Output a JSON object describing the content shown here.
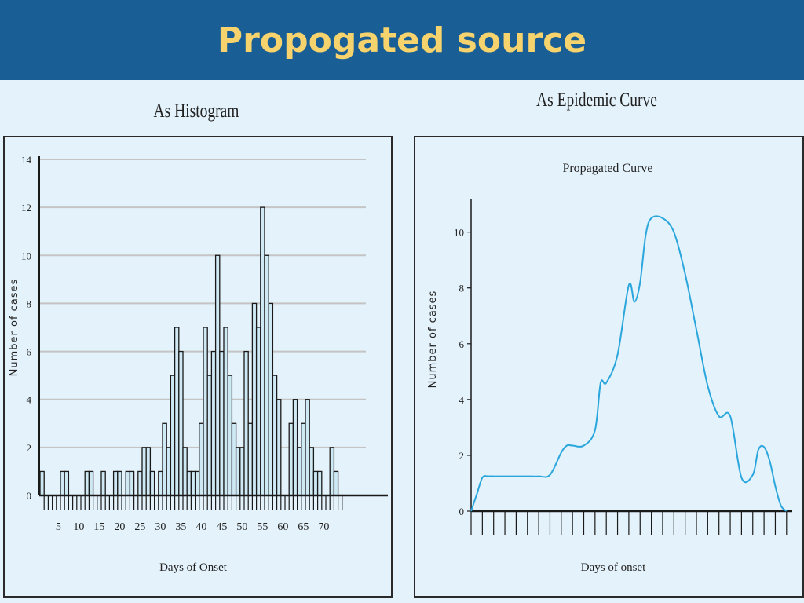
{
  "slide": {
    "title": "Propogated source"
  },
  "colors": {
    "header_bg": "#1a5e96",
    "title_color": "#f6d36c",
    "bar_fill": "#cfe9f4",
    "curve_color": "#2aa6dc"
  },
  "chart_data": [
    {
      "type": "bar",
      "panel_title": "As Histogram",
      "title": "",
      "xlabel": "Days of Onset",
      "ylabel": "Number of cases",
      "ylim": [
        0,
        14
      ],
      "yticks": [
        0,
        2,
        4,
        6,
        8,
        10,
        12,
        14
      ],
      "xticks": [
        5,
        10,
        15,
        20,
        25,
        30,
        35,
        40,
        45,
        50,
        55,
        60,
        65,
        70
      ],
      "x": [
        1,
        2,
        3,
        4,
        5,
        6,
        7,
        8,
        9,
        10,
        11,
        12,
        13,
        14,
        15,
        16,
        17,
        18,
        19,
        20,
        21,
        22,
        23,
        24,
        25,
        26,
        27,
        28,
        29,
        30,
        31,
        32,
        33,
        34,
        35,
        36,
        37,
        38,
        39,
        40,
        41,
        42,
        43,
        44,
        45,
        46,
        47,
        48,
        49,
        50,
        51,
        52,
        53,
        54,
        55,
        56,
        57,
        58,
        59,
        60,
        61,
        62,
        63,
        64,
        65,
        66,
        67,
        68,
        69,
        70,
        71,
        72,
        73,
        74
      ],
      "values": [
        1,
        0,
        0,
        0,
        0,
        1,
        1,
        0,
        0,
        0,
        0,
        1,
        1,
        0,
        0,
        1,
        0,
        0,
        1,
        1,
        0,
        1,
        1,
        0,
        1,
        2,
        2,
        1,
        0,
        1,
        3,
        2,
        5,
        7,
        6,
        2,
        1,
        1,
        1,
        3,
        7,
        5,
        6,
        10,
        6,
        7,
        5,
        3,
        2,
        2,
        6,
        3,
        8,
        7,
        12,
        10,
        8,
        5,
        4,
        0,
        0,
        3,
        4,
        2,
        3,
        4,
        2,
        1,
        1,
        0,
        0,
        2,
        1,
        0
      ],
      "grid": true
    },
    {
      "type": "line",
      "panel_title": "As Epidemic Curve",
      "title": "Propagated Curve",
      "xlabel": "Days of onset",
      "ylabel": "Number of cases",
      "ylim": [
        0,
        11.2
      ],
      "yticks": [
        0,
        2,
        4,
        6,
        8,
        10
      ],
      "x": [
        0,
        0.5,
        1,
        1.5,
        2,
        3,
        4,
        5,
        6,
        7,
        8,
        8.5,
        9,
        10,
        11,
        11.5,
        12,
        13,
        14,
        14.5,
        15,
        15.5,
        16,
        17,
        18,
        19,
        20,
        21,
        22,
        23,
        24,
        25,
        25.5,
        26,
        26.5,
        27,
        27.5,
        28
      ],
      "values": [
        0,
        0.6,
        1.2,
        1.25,
        1.25,
        1.25,
        1.25,
        1.25,
        1.25,
        1.3,
        2.1,
        2.35,
        2.35,
        2.35,
        2.9,
        4.6,
        4.6,
        5.6,
        8.1,
        7.5,
        8.2,
        9.9,
        10.5,
        10.5,
        10.0,
        8.5,
        6.5,
        4.5,
        3.4,
        3.4,
        1.2,
        1.3,
        2.2,
        2.3,
        1.8,
        0.9,
        0.2,
        0
      ]
    }
  ]
}
